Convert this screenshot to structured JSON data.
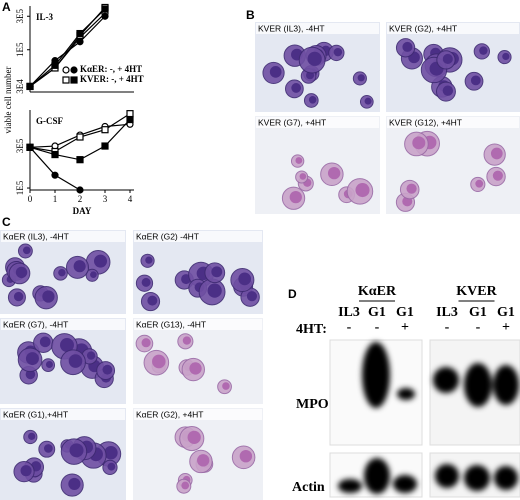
{
  "chart_data": [
    {
      "type": "line",
      "title": "IL-3",
      "log_y": true,
      "x": [
        0,
        1,
        2,
        3
      ],
      "xlim": [
        0,
        4
      ],
      "ylim": [
        25000,
        420000
      ],
      "yticks": [
        {
          "value": 30000,
          "label": "3E4"
        },
        {
          "value": 100000,
          "label": "1E5"
        },
        {
          "value": 300000,
          "label": "3E5"
        }
      ],
      "legend": [
        {
          "label": "KαER: -, + 4HT",
          "marker": "circle"
        },
        {
          "label": "KVER: -, + 4HT",
          "marker": "square"
        }
      ],
      "series": [
        {
          "marker": "circle",
          "filled": false,
          "color": "#000000",
          "values": [
            30000,
            55000,
            150000,
            330000
          ]
        },
        {
          "marker": "circle",
          "filled": true,
          "color": "#000000",
          "values": [
            30000,
            70000,
            130000,
            300000
          ]
        },
        {
          "marker": "square",
          "filled": false,
          "color": "#000000",
          "values": [
            30000,
            55000,
            160000,
            400000
          ]
        },
        {
          "marker": "square",
          "filled": true,
          "color": "#000000",
          "values": [
            30000,
            60000,
            170000,
            380000
          ]
        }
      ]
    },
    {
      "type": "line",
      "title": "G-CSF",
      "x_label": "DAY",
      "log_y": true,
      "x": [
        0,
        1,
        2,
        3,
        4
      ],
      "xlim": [
        0,
        4
      ],
      "xticks": [
        0,
        1,
        2,
        3,
        4
      ],
      "ylim": [
        95000,
        770000
      ],
      "yticks": [
        {
          "value": 100000,
          "label": "1E5"
        },
        {
          "value": 300000,
          "label": "3E5"
        }
      ],
      "series": [
        {
          "marker": "circle",
          "filled": false,
          "color": "#000000",
          "values": [
            290000,
            300000,
            400000,
            500000,
            530000
          ]
        },
        {
          "marker": "circle",
          "filled": true,
          "color": "#000000",
          "values": [
            290000,
            140000,
            95000,
            null,
            null
          ]
        },
        {
          "marker": "square",
          "filled": false,
          "color": "#000000",
          "values": [
            290000,
            260000,
            380000,
            460000,
            700000
          ]
        },
        {
          "marker": "square",
          "filled": true,
          "color": "#000000",
          "values": [
            290000,
            240000,
            210000,
            300000,
            600000
          ]
        }
      ]
    }
  ],
  "panel_a": {
    "label": "A",
    "y_label": "viable cell number"
  },
  "panel_b": {
    "label": "B",
    "images": [
      "KVER (IL3), -4HT",
      "KVER (G2), +4HT",
      "KVER (G7), +4HT",
      "KVER (G12), +4HT"
    ]
  },
  "panel_c": {
    "label": "C",
    "images": [
      "KαER (IL3), -4HT",
      "KαER (G2) -4HT",
      "KαER (G7), -4HT",
      "KαER (G13), -4HT",
      "KαER (G1),+4HT",
      "KαER (G2), +4HT"
    ]
  },
  "panel_d": {
    "label": "D",
    "groups": [
      {
        "name": "KαER",
        "lanes": [
          "IL3",
          "G1",
          "G1"
        ],
        "treatment": [
          "-",
          "-",
          "+"
        ]
      },
      {
        "name": "KVER",
        "lanes": [
          "IL3",
          "G1",
          "G1"
        ],
        "treatment": [
          "-",
          "-",
          "+"
        ]
      }
    ],
    "treatment_label": "4HT:",
    "rows": [
      "MPO",
      "Actin"
    ]
  }
}
